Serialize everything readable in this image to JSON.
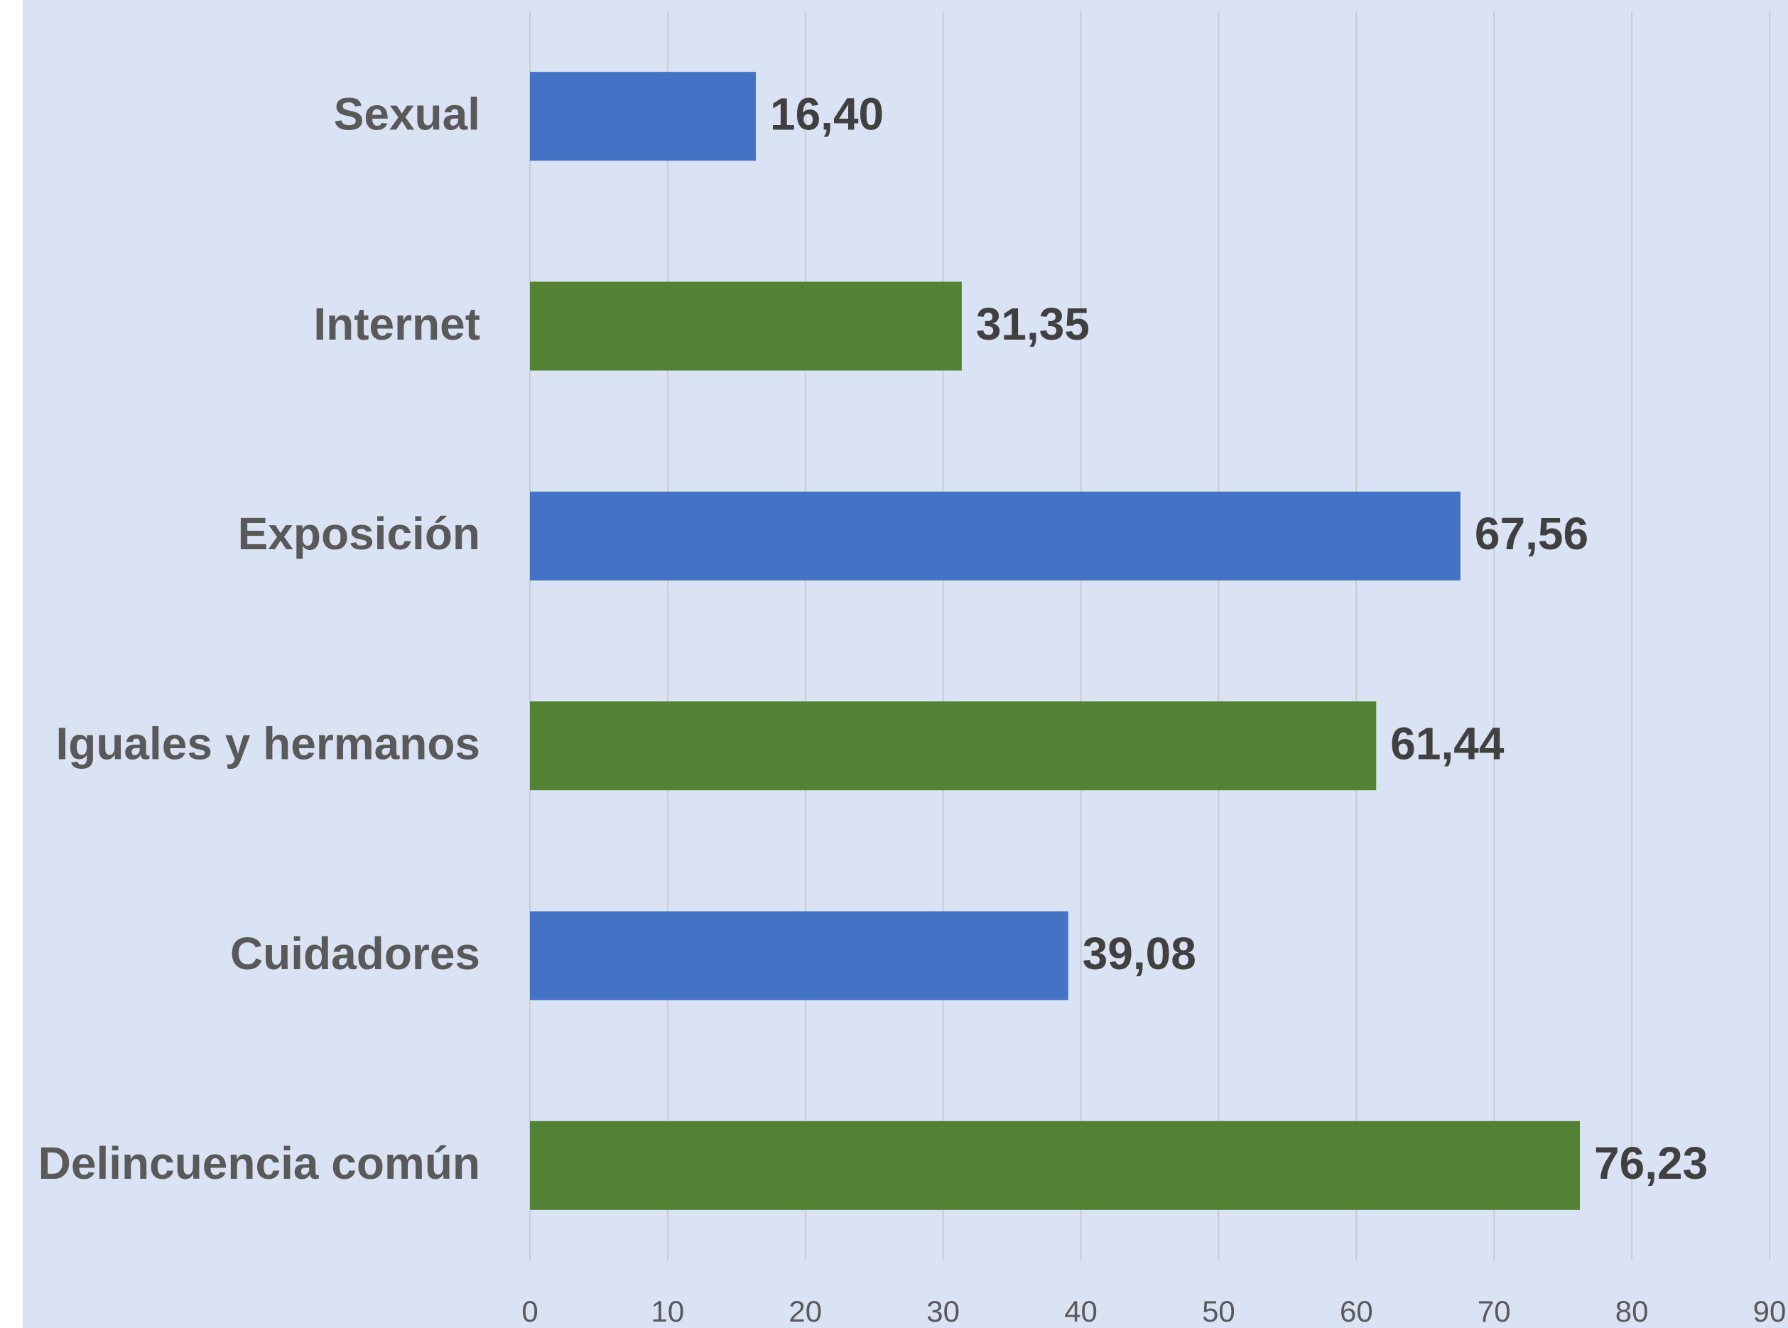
{
  "chart_data": {
    "type": "hbar",
    "categories": [
      "Sexual",
      "Internet",
      "Exposición",
      "Iguales y hermanos",
      "Cuidadores",
      "Delincuencia común"
    ],
    "values": [
      16.4,
      31.35,
      67.56,
      61.44,
      39.08,
      76.23
    ],
    "value_labels": [
      "16,40",
      "31,35",
      "67,56",
      "61,44",
      "39,08",
      "76,23"
    ],
    "colors": [
      "#4472c4",
      "#548235",
      "#4472c4",
      "#548235",
      "#4472c4",
      "#548235"
    ],
    "xlim": [
      0,
      90
    ],
    "xticks": [
      0,
      10,
      20,
      30,
      40,
      50,
      60,
      70,
      80,
      90
    ],
    "grid": true
  }
}
